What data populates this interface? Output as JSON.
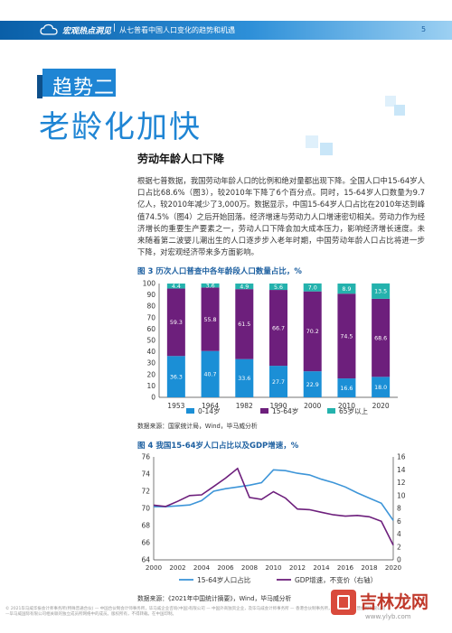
{
  "header": {
    "section": "宏观热点洞见",
    "separator": "|",
    "subtitle": "从七普看中国人口变化的趋势和机遇",
    "page_number": "5"
  },
  "tag": "趋势二",
  "headline": "老龄化加快",
  "section_title": "劳动年龄人口下降",
  "body": "根据七普数据，我国劳动年龄人口的比例和绝对量都出现下降。全国人口中15-64岁人口占比68.6%（图3），较2010年下降了6个百分点。同时，15-64岁人口数量为9.7亿人，较2010年减少了3,000万。数据显示，中国15-64岁人口占比在2010年达到峰值74.5%（图4）之后开始回落。经济增速与劳动力人口增速密切相关。劳动力作为经济增长的重要生产要素之一，劳动人口下降会加大成本压力，影响经济增长速度。未来随着第二波婴儿潮出生的人口逐步步入老年时期，中国劳动年龄人口占比将进一步下降，对宏观经济带来多方面影响。",
  "figure3": {
    "title": "图 3  历次人口普查中各年龄段人口数量占比，%",
    "source": "数据来源：国家统计局，Wind，毕马威分析"
  },
  "figure4": {
    "title": "图 4  我国15-64岁人口占比以及GDP增速，%",
    "source": "数据来源：《2021年中国统计摘要》，Wind，毕马威分析"
  },
  "footer": "© 2021毕马威华振会计师事务所(特殊普通合伙) — 中国合伙制会计师事务所，毕马威企业咨询(中国)有限公司 — 中国外商独资企业，及毕马威会计师事务所 — 香港合伙制事务所，均是与英国私营担保有限公司—毕马威国际有限公司相关联的独立成员所网络中的成员。版权所有，不得转载。在中国印制。",
  "watermark": {
    "text": "吉林龙网",
    "url": "www.ylyb.com"
  },
  "colors": {
    "brand_blue": "#1f85d4",
    "young": "#1b8fd6",
    "working": "#6d1f7c",
    "elderly": "#24b2ad",
    "line_ratio": "#3d95d8",
    "line_gdp": "#6d1f7c"
  },
  "chart_data": [
    {
      "type": "bar",
      "stacked": true,
      "categories": [
        "1953",
        "1964",
        "1982",
        "1990",
        "2000",
        "2010",
        "2020"
      ],
      "series": [
        {
          "name": "0-14岁",
          "values": [
            36.3,
            40.7,
            33.6,
            27.7,
            22.9,
            16.6,
            18.0
          ]
        },
        {
          "name": "15-64岁",
          "values": [
            59.3,
            55.8,
            61.5,
            66.7,
            70.2,
            74.5,
            68.6
          ]
        },
        {
          "name": "65岁以上",
          "values": [
            4.4,
            3.6,
            4.9,
            5.6,
            7.0,
            8.9,
            13.5
          ]
        }
      ],
      "ylim": [
        0,
        100
      ],
      "yticks": [
        0,
        10,
        20,
        30,
        40,
        50,
        60,
        70,
        80,
        90,
        100
      ],
      "legend": "bottom",
      "grid": false
    },
    {
      "type": "line",
      "x": [
        2000,
        2001,
        2002,
        2003,
        2004,
        2005,
        2006,
        2007,
        2008,
        2009,
        2010,
        2011,
        2012,
        2013,
        2014,
        2015,
        2016,
        2017,
        2018,
        2019,
        2020
      ],
      "series": [
        {
          "name": "15-64岁人口占比",
          "axis": "left",
          "values": [
            70.2,
            70.2,
            70.3,
            70.4,
            70.9,
            72.0,
            72.3,
            72.5,
            72.7,
            73.0,
            74.5,
            74.4,
            74.1,
            73.9,
            73.4,
            73.0,
            72.5,
            71.8,
            71.2,
            70.6,
            68.6
          ]
        },
        {
          "name": "GDP增速，不变价（右轴）",
          "axis": "right",
          "values": [
            8.5,
            8.3,
            9.1,
            10.0,
            10.1,
            11.4,
            12.7,
            14.2,
            9.7,
            9.4,
            10.6,
            9.6,
            7.9,
            7.8,
            7.4,
            7.0,
            6.8,
            6.9,
            6.7,
            6.0,
            2.3
          ]
        }
      ],
      "xticks": [
        2000,
        2002,
        2004,
        2006,
        2008,
        2010,
        2012,
        2014,
        2016,
        2018,
        2020
      ],
      "ylim_left": [
        64,
        76
      ],
      "yticks_left": [
        64,
        66,
        68,
        70,
        72,
        74,
        76
      ],
      "ylim_right": [
        0,
        16
      ],
      "yticks_right": [
        0,
        2,
        4,
        6,
        8,
        10,
        12,
        14,
        16
      ],
      "legend": "bottom",
      "grid": false
    }
  ]
}
